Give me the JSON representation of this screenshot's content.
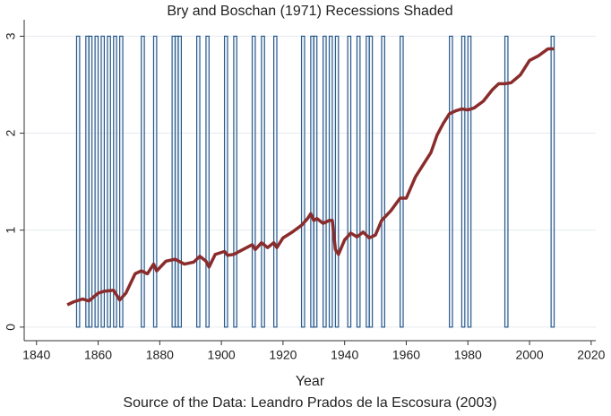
{
  "chart_data": {
    "type": "line",
    "title": "Bry and Boschan (1971) Recessions Shaded",
    "x_label": "Year",
    "note": "Source of the Data: Leandro Prados de la Escosura (2003)",
    "xlim": [
      1836,
      2021.5
    ],
    "ylim": [
      -0.14,
      3.17
    ],
    "xticks": [
      1840,
      1860,
      1880,
      1900,
      1920,
      1940,
      1960,
      1980,
      2000,
      2020
    ],
    "yticks": [
      0,
      1,
      2,
      3
    ],
    "grid": true,
    "recessions": {
      "color": "#2a5a8c",
      "height": 3,
      "start": [
        1853,
        1856,
        1857,
        1859,
        1861,
        1863,
        1865,
        1867,
        1874,
        1878,
        1884,
        1885,
        1886,
        1892,
        1895,
        1901,
        1904,
        1910,
        1913,
        1917,
        1926,
        1929,
        1930,
        1933,
        1935,
        1937,
        1941,
        1944,
        1947,
        1948,
        1952,
        1958,
        1974,
        1978,
        1980,
        1992,
        2007
      ],
      "end": [
        1854,
        1857,
        1858,
        1860,
        1862,
        1864,
        1866,
        1868,
        1875,
        1879,
        1885,
        1886,
        1887,
        1893,
        1896,
        1902,
        1905,
        1911,
        1914,
        1918,
        1927,
        1930,
        1931,
        1934,
        1936,
        1938,
        1942,
        1945,
        1948,
        1949,
        1953,
        1959,
        1975,
        1979,
        1981,
        1993,
        2008
      ]
    },
    "series": [
      {
        "color": "#8b2c2c",
        "x": [
          1850,
          1852,
          1855,
          1857,
          1860,
          1862,
          1865,
          1867,
          1869,
          1872,
          1874,
          1876,
          1878,
          1879,
          1882,
          1885,
          1888,
          1891,
          1893,
          1895,
          1896,
          1898,
          1901,
          1902,
          1904,
          1907,
          1910,
          1911,
          1913,
          1915,
          1917,
          1918,
          1920,
          1923,
          1926,
          1928,
          1929,
          1930,
          1931,
          1933,
          1935,
          1936,
          1937,
          1938,
          1940,
          1942,
          1944,
          1946,
          1948,
          1950,
          1952,
          1955,
          1958,
          1960,
          1963,
          1966,
          1968,
          1970,
          1972,
          1974,
          1976,
          1978,
          1980,
          1982,
          1985,
          1988,
          1990,
          1992,
          1994,
          1997,
          2000,
          2003,
          2006,
          2008
        ],
        "values": [
          0.23,
          0.26,
          0.29,
          0.27,
          0.35,
          0.37,
          0.38,
          0.28,
          0.35,
          0.55,
          0.58,
          0.55,
          0.65,
          0.58,
          0.68,
          0.7,
          0.65,
          0.67,
          0.73,
          0.68,
          0.62,
          0.75,
          0.78,
          0.74,
          0.75,
          0.8,
          0.85,
          0.8,
          0.87,
          0.82,
          0.87,
          0.82,
          0.92,
          0.98,
          1.05,
          1.12,
          1.17,
          1.1,
          1.12,
          1.07,
          1.1,
          1.1,
          0.8,
          0.75,
          0.9,
          0.97,
          0.93,
          0.98,
          0.92,
          0.95,
          1.1,
          1.2,
          1.33,
          1.33,
          1.55,
          1.7,
          1.8,
          1.98,
          2.1,
          2.2,
          2.23,
          2.25,
          2.24,
          2.26,
          2.33,
          2.45,
          2.51,
          2.51,
          2.52,
          2.6,
          2.75,
          2.8,
          2.87,
          2.87
        ]
      }
    ]
  }
}
